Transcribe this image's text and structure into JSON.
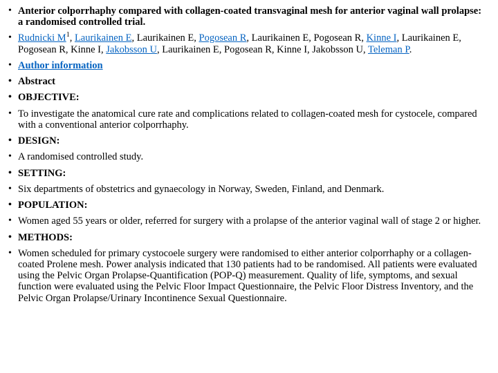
{
  "link_color": "#0563c1",
  "title": "Anterior colporrhaphy compared with collagen-coated transvaginal mesh for anterior vaginal wall prolapse: a randomised controlled trial.",
  "authors": {
    "a1": "Rudnicki M",
    "a1_sup": "1",
    "a2": "Laurikainen E",
    "plain1": ", Laurikainen E, ",
    "a3": "Pogosean R",
    "plain2": ", Laurikainen E, Pogosean R, ",
    "a4": "Kinne I",
    "plain3": ", Laurikainen E, Pogosean R, Kinne I, ",
    "a5": "Jakobsson U",
    "plain4": ", Laurikainen E, Pogosean R, Kinne I, Jakobsson U, ",
    "a6": "Teleman P",
    "tail": "."
  },
  "author_info": "Author information",
  "abstract_label": "Abstract",
  "objective_label": "OBJECTIVE:",
  "objective_text": "To investigate the anatomical cure rate and complications related to collagen-coated mesh for cystocele, compared with a conventional anterior colporrhaphy.",
  "design_label": "DESIGN:",
  "design_text": "A randomised controlled study.",
  "setting_label": "SETTING:",
  "setting_text": "Six departments of obstetrics and gynaecology in Norway, Sweden, Finland, and Denmark.",
  "population_label": "POPULATION:",
  "population_text": "Women aged 55 years or older, referred for surgery with a prolapse of the anterior vaginal wall of stage 2 or higher.",
  "methods_label": "METHODS:",
  "methods_text": "Women scheduled for primary cystocoele surgery were randomised to either anterior colporrhaphy or a collagen-coated Prolene mesh. Power analysis indicated that 130 patients had to be randomised. All patients were evaluated using the Pelvic Organ Prolapse-Quantification (POP-Q) measurement. Quality of life, symptoms, and sexual function were evaluated using the Pelvic Floor Impact Questionnaire, the Pelvic Floor Distress Inventory, and the Pelvic Organ Prolapse/Urinary Incontinence Sexual Questionnaire."
}
